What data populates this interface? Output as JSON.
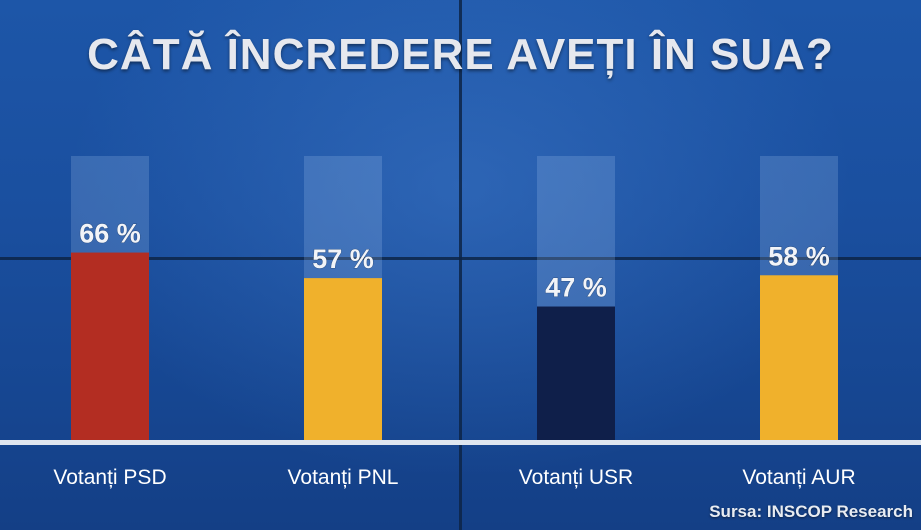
{
  "chart_data": {
    "type": "bar",
    "title": "CÂTĂ ÎNCREDERE AVEȚI ÎN SUA?",
    "categories": [
      "Votanți PSD",
      "Votanți PNL",
      "Votanți USR",
      "Votanți AUR"
    ],
    "values": [
      66,
      57,
      47,
      58
    ],
    "value_labels": [
      "66 %",
      "57 %",
      "47 %",
      "58 %"
    ],
    "bar_colors": [
      "#b32d22",
      "#f0b12c",
      "#0f1f4a",
      "#f0b12c"
    ],
    "ylim": [
      0,
      100
    ],
    "grid": false
  },
  "source": "Sursa: INSCOP Research"
}
